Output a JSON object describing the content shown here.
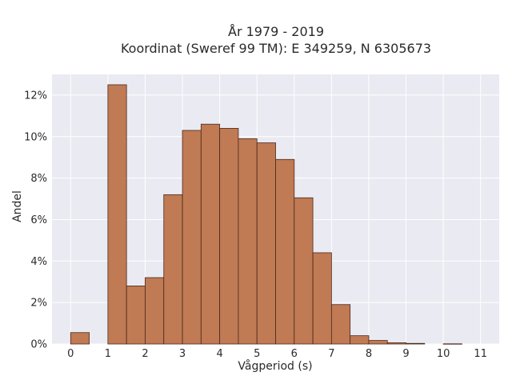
{
  "chart_data": {
    "type": "bar",
    "title_line1": "År 1979 - 2019",
    "title_line2": "Koordinat (Sweref 99 TM): E 349259, N 6305673",
    "xlabel": "Vågperiod (s)",
    "ylabel": "Andel",
    "xlim": [
      -0.5,
      11.5
    ],
    "ylim": [
      0,
      0.13
    ],
    "xticks": [
      0,
      1,
      2,
      3,
      4,
      5,
      6,
      7,
      8,
      9,
      10,
      11
    ],
    "xtick_labels": [
      "0",
      "1",
      "2",
      "3",
      "4",
      "5",
      "6",
      "7",
      "8",
      "9",
      "10",
      "11"
    ],
    "yticks": [
      0,
      0.02,
      0.04,
      0.06,
      0.08,
      0.1,
      0.12
    ],
    "ytick_labels": [
      "0%",
      "2%",
      "4%",
      "6%",
      "8%",
      "10%",
      "12%"
    ],
    "bin_width": 0.5,
    "bins": [
      {
        "x0": 0.0,
        "value": 0.0055
      },
      {
        "x0": 1.0,
        "value": 0.125
      },
      {
        "x0": 1.5,
        "value": 0.028
      },
      {
        "x0": 2.0,
        "value": 0.032
      },
      {
        "x0": 2.5,
        "value": 0.072
      },
      {
        "x0": 3.0,
        "value": 0.103
      },
      {
        "x0": 3.5,
        "value": 0.106
      },
      {
        "x0": 4.0,
        "value": 0.104
      },
      {
        "x0": 4.5,
        "value": 0.099
      },
      {
        "x0": 5.0,
        "value": 0.097
      },
      {
        "x0": 5.5,
        "value": 0.089
      },
      {
        "x0": 6.0,
        "value": 0.0705
      },
      {
        "x0": 6.5,
        "value": 0.044
      },
      {
        "x0": 7.0,
        "value": 0.019
      },
      {
        "x0": 7.5,
        "value": 0.004
      },
      {
        "x0": 8.0,
        "value": 0.0017
      },
      {
        "x0": 8.5,
        "value": 0.0006
      },
      {
        "x0": 9.0,
        "value": 0.0003
      },
      {
        "x0": 10.0,
        "value": 0.0001
      }
    ],
    "grid": true,
    "colors": {
      "bar_fill": "#c07a54",
      "bar_edge": "#4a2a1a",
      "plot_background": "#eaeaf2",
      "grid": "#ffffff"
    }
  }
}
